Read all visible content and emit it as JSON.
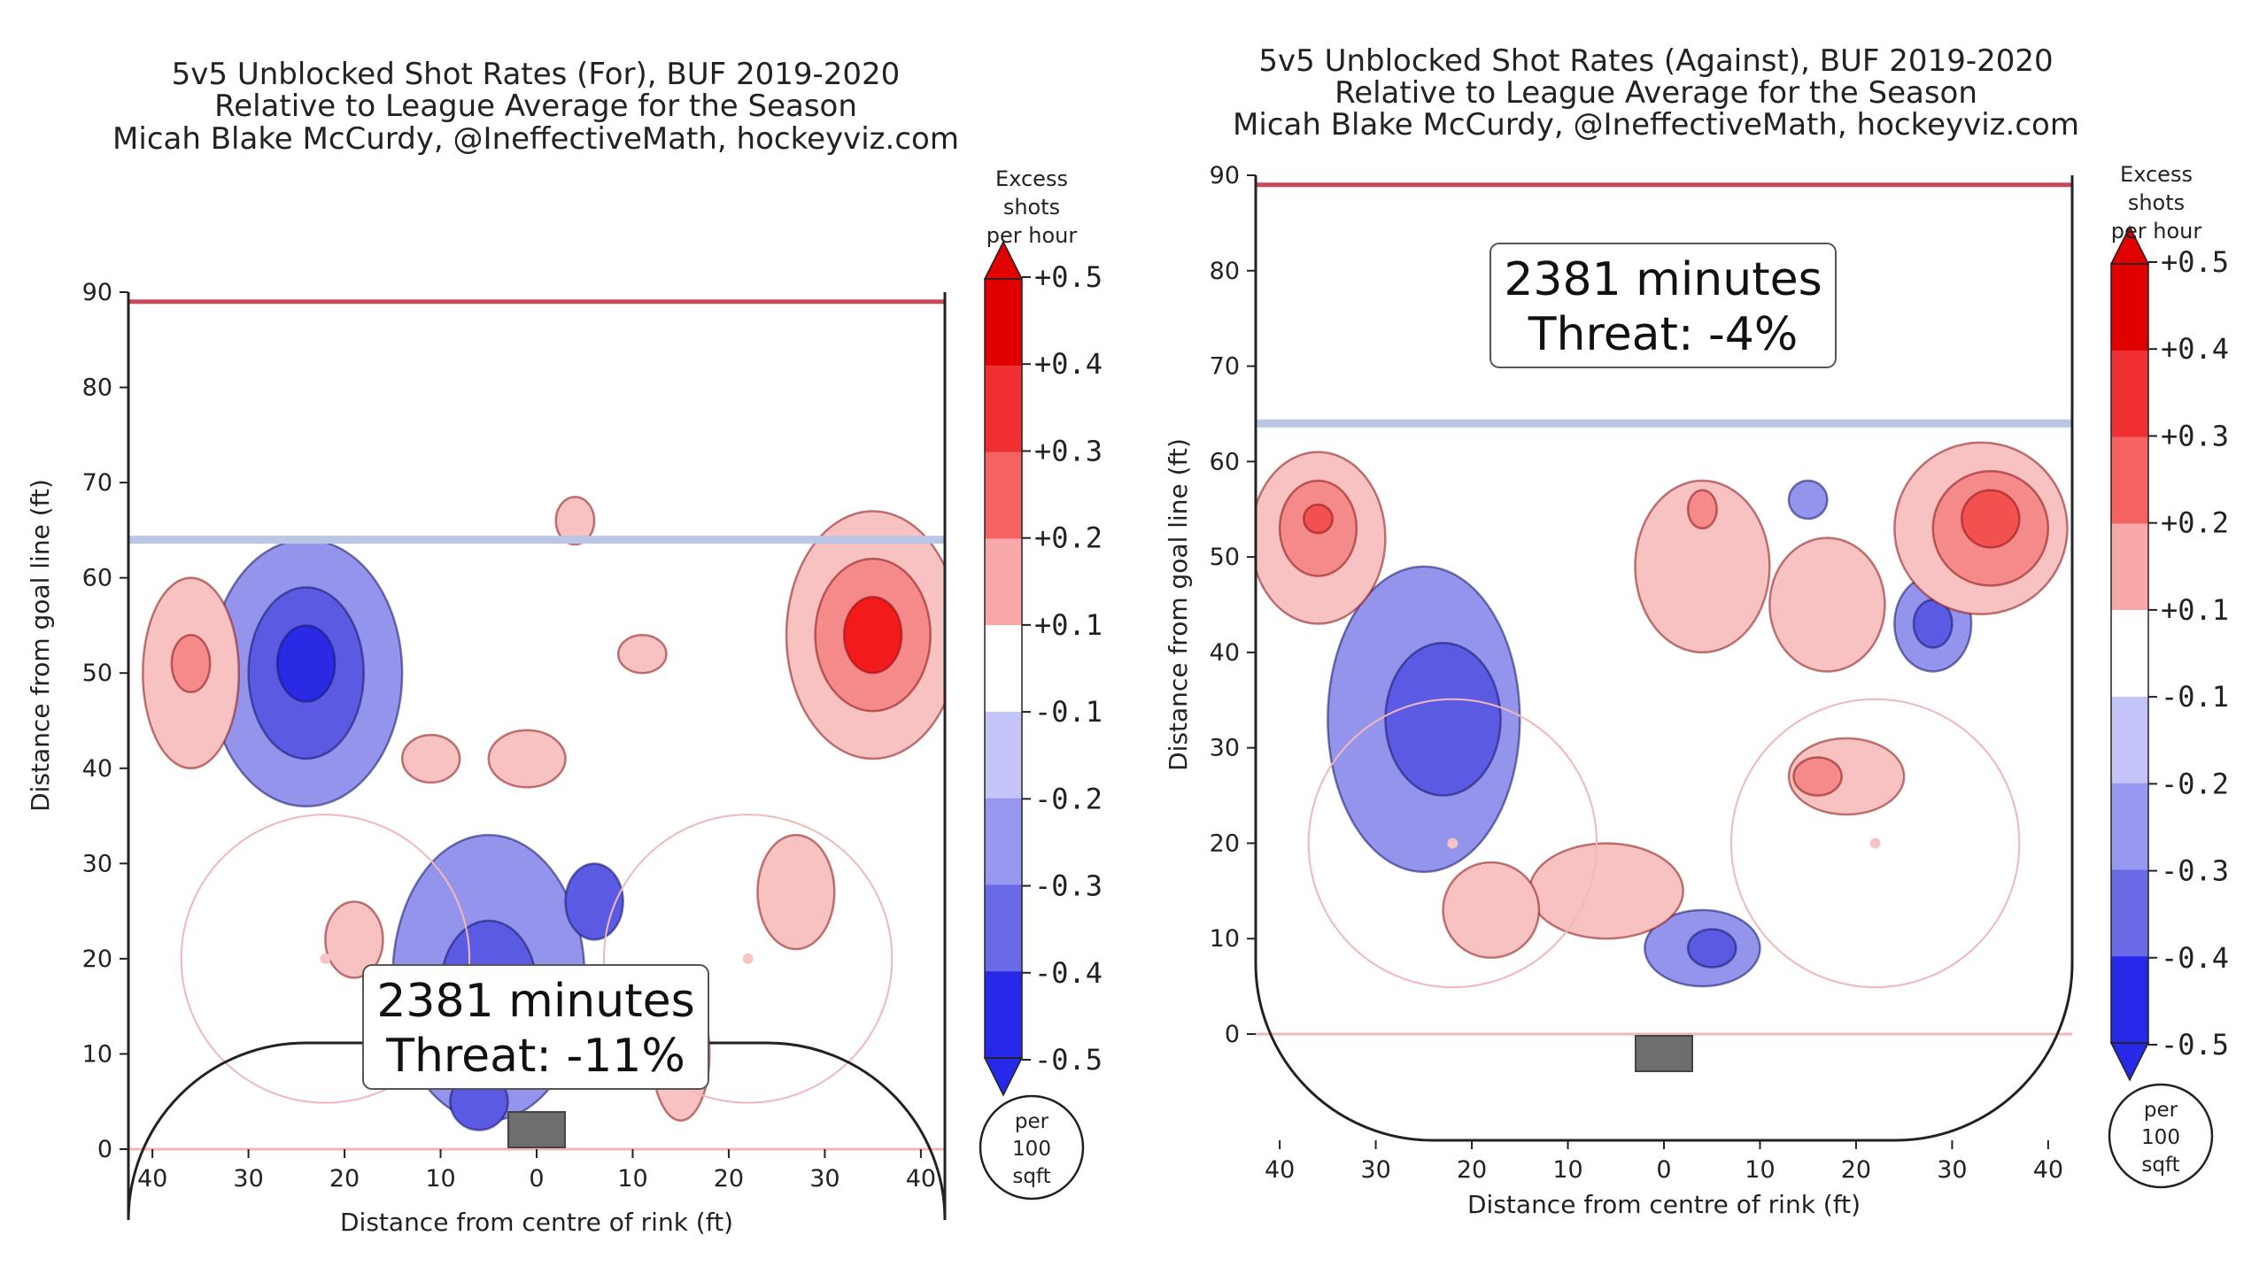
{
  "chart_data": [
    {
      "type": "heatmap",
      "title": [
        "5v5 Unblocked Shot Rates (For), BUF 2019-2020",
        "Relative to League Average for the Season",
        "Micah Blake McCurdy, @IneffectiveMath, hockeyviz.com"
      ],
      "xlabel": "Distance from centre of rink (ft)",
      "ylabel": "Distance from goal line (ft)",
      "xlim": [
        -42.5,
        42.5
      ],
      "ylim": [
        90,
        0
      ],
      "y_inverted": true,
      "xticks": [
        "40",
        "30",
        "20",
        "10",
        "0",
        "10",
        "20",
        "30",
        "40"
      ],
      "yticks": [
        "0",
        "10",
        "20",
        "30",
        "40",
        "50",
        "60",
        "70",
        "80",
        "90"
      ],
      "goal_line_y": 0,
      "blue_line_y": 64,
      "far_line_y": 89,
      "faceoff_circles": [
        {
          "x": -22,
          "y": 20
        },
        {
          "x": 22,
          "y": 20
        }
      ],
      "goal": {
        "x": 0,
        "y": -2
      },
      "annotation": [
        "2381 minutes",
        "Threat: -11%"
      ],
      "colorbar_title": [
        "Excess",
        "shots",
        "per hour"
      ],
      "colorbar_ticks": [
        "+0.5",
        "+0.4",
        "+0.3",
        "+0.2",
        "+0.1",
        "-0.1",
        "-0.2",
        "-0.3",
        "-0.4",
        "-0.5"
      ],
      "unit_badge": [
        "per",
        "100",
        "sqft"
      ],
      "regions": [
        {
          "x": -24,
          "y": 50,
          "rx": 10,
          "ry": 14,
          "value": -0.25
        },
        {
          "x": -24,
          "y": 50,
          "rx": 6,
          "ry": 9,
          "value": -0.35
        },
        {
          "x": -24,
          "y": 51,
          "rx": 3,
          "ry": 4,
          "value": -0.45
        },
        {
          "x": -5,
          "y": 18,
          "rx": 10,
          "ry": 15,
          "value": -0.2
        },
        {
          "x": -5,
          "y": 17,
          "rx": 5,
          "ry": 7,
          "value": -0.3
        },
        {
          "x": -6,
          "y": 5,
          "rx": 3,
          "ry": 3,
          "value": -0.3
        },
        {
          "x": 6,
          "y": 26,
          "rx": 3,
          "ry": 4,
          "value": -0.3
        },
        {
          "x": -36,
          "y": 50,
          "rx": 5,
          "ry": 10,
          "value": 0.15
        },
        {
          "x": -36,
          "y": 51,
          "rx": 2,
          "ry": 3,
          "value": 0.25
        },
        {
          "x": 35,
          "y": 54,
          "rx": 9,
          "ry": 13,
          "value": 0.15
        },
        {
          "x": 35,
          "y": 54,
          "rx": 6,
          "ry": 8,
          "value": 0.25
        },
        {
          "x": 35,
          "y": 54,
          "rx": 3,
          "ry": 4,
          "value": 0.4
        },
        {
          "x": -19,
          "y": 22,
          "rx": 3,
          "ry": 4,
          "value": 0.15
        },
        {
          "x": 15,
          "y": 10,
          "rx": 3,
          "ry": 7,
          "value": 0.15
        },
        {
          "x": 27,
          "y": 27,
          "rx": 4,
          "ry": 6,
          "value": 0.15
        },
        {
          "x": -11,
          "y": 41,
          "rx": 3,
          "ry": 2.5,
          "value": 0.15
        },
        {
          "x": -1,
          "y": 41,
          "rx": 4,
          "ry": 3,
          "value": 0.15
        },
        {
          "x": 11,
          "y": 52,
          "rx": 2.5,
          "ry": 2,
          "value": 0.15
        },
        {
          "x": 4,
          "y": 66,
          "rx": 2,
          "ry": 2.5,
          "value": 0.15
        }
      ]
    },
    {
      "type": "heatmap",
      "title": [
        "5v5 Unblocked Shot Rates (Against), BUF 2019-2020",
        "Relative to League Average for the Season",
        "Micah Blake McCurdy, @IneffectiveMath, hockeyviz.com"
      ],
      "xlabel": "Distance from centre of rink (ft)",
      "ylabel": "Distance from goal line (ft)",
      "xlim": [
        -42.5,
        42.5
      ],
      "ylim": [
        0,
        90
      ],
      "y_inverted": false,
      "xticks": [
        "40",
        "30",
        "20",
        "10",
        "0",
        "10",
        "20",
        "30",
        "40"
      ],
      "yticks": [
        "0",
        "10",
        "20",
        "30",
        "40",
        "50",
        "60",
        "70",
        "80",
        "90"
      ],
      "goal_line_y": 0,
      "blue_line_y": 64,
      "far_line_y": 89,
      "faceoff_circles": [
        {
          "x": -22,
          "y": 20
        },
        {
          "x": 22,
          "y": 20
        }
      ],
      "goal": {
        "x": 0,
        "y": -2
      },
      "annotation": [
        "2381 minutes",
        "Threat: -4%"
      ],
      "colorbar_title": [
        "Excess",
        "shots",
        "per hour"
      ],
      "colorbar_ticks": [
        "+0.5",
        "+0.4",
        "+0.3",
        "+0.2",
        "+0.1",
        "-0.1",
        "-0.2",
        "-0.3",
        "-0.4",
        "-0.5"
      ],
      "unit_badge": [
        "per",
        "100",
        "sqft"
      ],
      "regions": [
        {
          "x": -25,
          "y": 33,
          "rx": 10,
          "ry": 16,
          "value": -0.25
        },
        {
          "x": -23,
          "y": 33,
          "rx": 6,
          "ry": 8,
          "value": -0.35
        },
        {
          "x": 4,
          "y": 9,
          "rx": 6,
          "ry": 4,
          "value": -0.25
        },
        {
          "x": 5,
          "y": 9,
          "rx": 2.5,
          "ry": 2,
          "value": -0.35
        },
        {
          "x": 28,
          "y": 43,
          "rx": 4,
          "ry": 5,
          "value": -0.25
        },
        {
          "x": 28,
          "y": 43,
          "rx": 2,
          "ry": 2.5,
          "value": -0.35
        },
        {
          "x": 15,
          "y": 56,
          "rx": 2,
          "ry": 2,
          "value": -0.25
        },
        {
          "x": -36,
          "y": 52,
          "rx": 7,
          "ry": 9,
          "value": 0.15
        },
        {
          "x": -36,
          "y": 53,
          "rx": 4,
          "ry": 5,
          "value": 0.25
        },
        {
          "x": -36,
          "y": 54,
          "rx": 1.5,
          "ry": 1.5,
          "value": 0.35
        },
        {
          "x": 33,
          "y": 53,
          "rx": 9,
          "ry": 9,
          "value": 0.15
        },
        {
          "x": 34,
          "y": 53,
          "rx": 6,
          "ry": 6,
          "value": 0.25
        },
        {
          "x": 34,
          "y": 54,
          "rx": 3,
          "ry": 3,
          "value": 0.35
        },
        {
          "x": 4,
          "y": 49,
          "rx": 7,
          "ry": 9,
          "value": 0.15
        },
        {
          "x": 4,
          "y": 55,
          "rx": 1.5,
          "ry": 2,
          "value": 0.25
        },
        {
          "x": 17,
          "y": 45,
          "rx": 6,
          "ry": 7,
          "value": 0.15
        },
        {
          "x": 19,
          "y": 27,
          "rx": 6,
          "ry": 4,
          "value": 0.15
        },
        {
          "x": 16,
          "y": 27,
          "rx": 2.5,
          "ry": 2,
          "value": 0.25
        },
        {
          "x": -6,
          "y": 15,
          "rx": 8,
          "ry": 5,
          "value": 0.15
        },
        {
          "x": -18,
          "y": 13,
          "rx": 5,
          "ry": 5,
          "value": 0.15
        }
      ]
    }
  ]
}
